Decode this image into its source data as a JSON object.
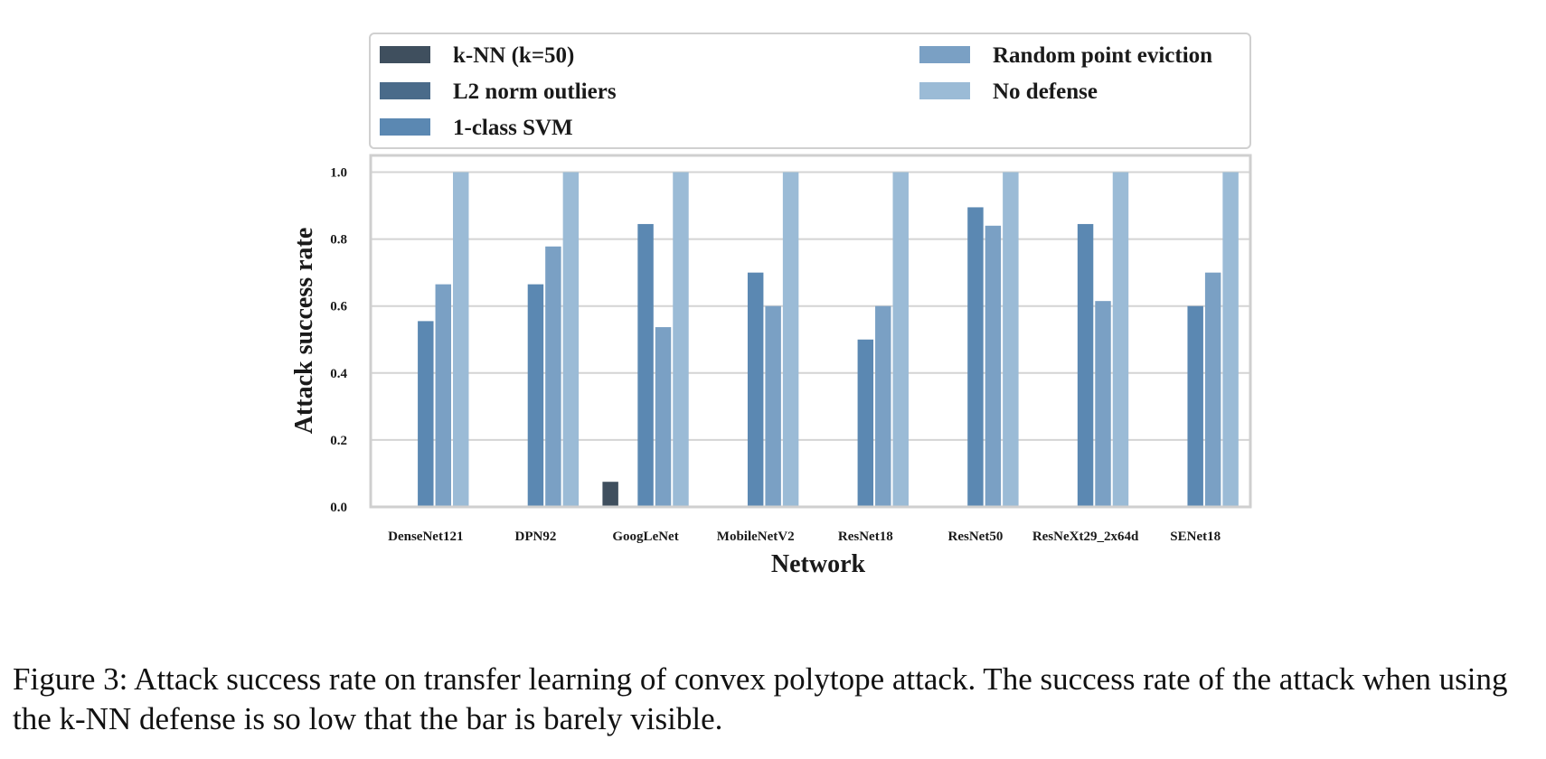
{
  "chart_data": {
    "type": "bar",
    "xlabel": "Network",
    "ylabel": "Attack success rate",
    "ylim": [
      0,
      1.05
    ],
    "yticks": [
      0.0,
      0.2,
      0.4,
      0.6,
      0.8,
      1.0
    ],
    "ytick_labels": [
      "0.0",
      "0.2",
      "0.4",
      "0.6",
      "0.8",
      "1.0"
    ],
    "grid": true,
    "legend_position": "top, outside plot",
    "categories": [
      "DenseNet121",
      "DPN92",
      "GoogLeNet",
      "MobileNetV2",
      "ResNet18",
      "ResNet50",
      "ResNeXt29_2x64d",
      "SENet18"
    ],
    "series": [
      {
        "name": "k-NN (k=50)",
        "color": "#3f4f5e",
        "values": [
          0,
          0,
          0.075,
          0,
          0,
          0,
          0,
          0
        ]
      },
      {
        "name": "L2 norm outliers",
        "color": "#4a6b8a",
        "values": [
          0,
          0,
          0,
          0,
          0,
          0,
          0,
          0
        ]
      },
      {
        "name": "1-class SVM",
        "color": "#5b88b2",
        "values": [
          0.555,
          0.665,
          0.845,
          0.7,
          0.5,
          0.895,
          0.845,
          0.6
        ]
      },
      {
        "name": "Random point eviction",
        "color": "#7aa0c4",
        "values": [
          0.665,
          0.778,
          0.537,
          0.6,
          0.6,
          0.84,
          0.615,
          0.7
        ]
      },
      {
        "name": "No defense",
        "color": "#9bbbd6",
        "values": [
          1.0,
          1.0,
          1.0,
          1.0,
          1.0,
          1.0,
          1.0,
          1.0
        ]
      }
    ]
  },
  "caption": "Figure 3: Attack success rate on transfer learning of convex polytope attack. The success rate of the attack when using the k-NN defense is so low that the bar is barely visible."
}
